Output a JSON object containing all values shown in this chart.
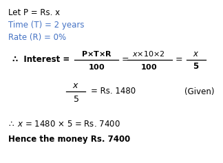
{
  "bg_color": "#ffffff",
  "black": "#000000",
  "blue": "#4472c4",
  "figw": 3.24,
  "figh": 2.37,
  "dpi": 100
}
